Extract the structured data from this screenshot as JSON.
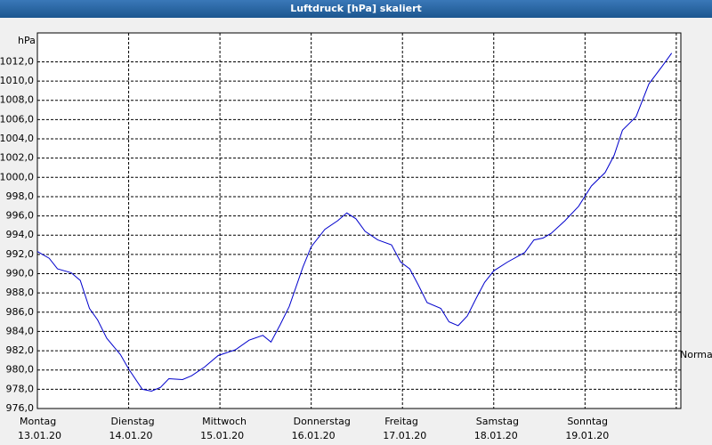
{
  "chart_data": {
    "type": "line",
    "title": "Luftdruck [hPa] skaliert",
    "y_label": "hPa",
    "annotation": "Normal",
    "xlim": [
      0,
      7.05
    ],
    "ylim": [
      976,
      1015
    ],
    "xticks": [
      {
        "value": 0,
        "label": "Montag"
      },
      {
        "value": 1,
        "label": "Dienstag"
      },
      {
        "value": 2,
        "label": "Mittwoch"
      },
      {
        "value": 3,
        "label": "Donnerstag"
      },
      {
        "value": 4,
        "label": "Freitag"
      },
      {
        "value": 5,
        "label": "Samstag"
      },
      {
        "value": 6,
        "label": "Sonntag"
      },
      {
        "value": 7,
        "label": ""
      }
    ],
    "xtick_dates": [
      "13.01.20",
      "14.01.20",
      "15.01.20",
      "16.01.20",
      "17.01.20",
      "18.01.20",
      "19.01.20"
    ],
    "yticks": [
      {
        "value": 976,
        "label": "976,0"
      },
      {
        "value": 978,
        "label": "978,0"
      },
      {
        "value": 980,
        "label": "980,0"
      },
      {
        "value": 982,
        "label": "982,0"
      },
      {
        "value": 984,
        "label": "984,0"
      },
      {
        "value": 986,
        "label": "986,0"
      },
      {
        "value": 988,
        "label": "988,0"
      },
      {
        "value": 990,
        "label": "990,0"
      },
      {
        "value": 992,
        "label": "992,0"
      },
      {
        "value": 994,
        "label": "994,0"
      },
      {
        "value": 996,
        "label": "996,0"
      },
      {
        "value": 998,
        "label": "998,0"
      },
      {
        "value": 1000,
        "label": "1000,0"
      },
      {
        "value": 1002,
        "label": "1002,0"
      },
      {
        "value": 1004,
        "label": "1004,0"
      },
      {
        "value": 1006,
        "label": "1006,0"
      },
      {
        "value": 1008,
        "label": "1008,0"
      },
      {
        "value": 1010,
        "label": "1010,0"
      },
      {
        "value": 1012,
        "label": "1012,0"
      }
    ],
    "grid": true,
    "series": [
      {
        "name": "Luftdruck",
        "color": "#0000cc",
        "x": [
          0,
          0.13,
          0.22,
          0.37,
          0.47,
          0.57,
          0.66,
          0.76,
          0.91,
          1.0,
          1.15,
          1.25,
          1.35,
          1.44,
          1.59,
          1.69,
          1.83,
          1.98,
          2.17,
          2.32,
          2.47,
          2.56,
          2.66,
          2.76,
          2.91,
          3.0,
          3.15,
          3.29,
          3.39,
          3.49,
          3.59,
          3.73,
          3.88,
          3.98,
          4.08,
          4.17,
          4.27,
          4.42,
          4.51,
          4.61,
          4.71,
          4.81,
          4.9,
          5.0,
          5.15,
          5.34,
          5.44,
          5.54,
          5.63,
          5.78,
          5.93,
          6.07,
          6.22,
          6.32,
          6.41,
          6.56,
          6.7,
          6.85,
          6.95
        ],
        "values": [
          992.3,
          991.6,
          990.5,
          990.1,
          989.3,
          986.4,
          985.2,
          983.3,
          981.6,
          980.1,
          978.0,
          977.8,
          978.2,
          979.1,
          979.0,
          979.4,
          980.3,
          981.5,
          982.1,
          983.1,
          983.6,
          982.9,
          984.7,
          986.6,
          990.7,
          992.8,
          994.6,
          995.5,
          996.3,
          995.7,
          994.4,
          993.5,
          993.0,
          991.2,
          990.5,
          988.9,
          987.0,
          986.4,
          985.0,
          984.6,
          985.6,
          987.5,
          989.1,
          990.3,
          991.2,
          992.2,
          993.5,
          993.7,
          994.2,
          995.5,
          997.0,
          999.1,
          1000.5,
          1002.3,
          1004.9,
          1006.3,
          1009.7,
          1011.6,
          1012.9
        ]
      }
    ]
  }
}
